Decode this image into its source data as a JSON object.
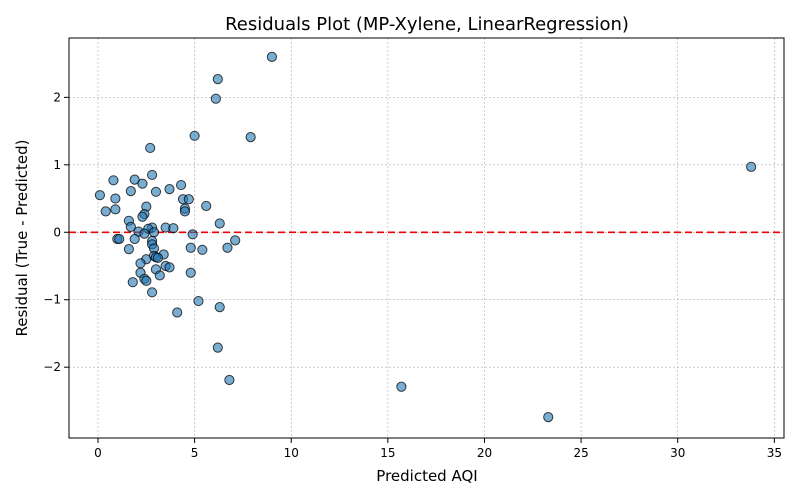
{
  "chart_data": {
    "type": "scatter",
    "title": "Residuals Plot (MP-Xylene, LinearRegression)",
    "xlabel": "Predicted AQI",
    "ylabel": "Residual (True - Predicted)",
    "xlim": [
      -1.5,
      35.5
    ],
    "ylim": [
      -3.05,
      2.88
    ],
    "xticks": [
      0,
      5,
      10,
      15,
      20,
      25,
      30,
      35
    ],
    "yticks": [
      -2,
      -1,
      0,
      1,
      2
    ],
    "x_tick_labels": [
      "0",
      "5",
      "10",
      "15",
      "20",
      "25",
      "30",
      "35"
    ],
    "y_tick_labels": [
      "−2",
      "−1",
      "0",
      "1",
      "2"
    ],
    "grid": true,
    "reference_line": {
      "y": 0,
      "color": "#ee0000",
      "style": "dashed"
    },
    "point_color": "#1f77b4",
    "points": [
      {
        "x": 9.0,
        "y": 2.6
      },
      {
        "x": 6.2,
        "y": 2.27
      },
      {
        "x": 6.1,
        "y": 1.98
      },
      {
        "x": 5.0,
        "y": 1.43
      },
      {
        "x": 7.9,
        "y": 1.41
      },
      {
        "x": 2.7,
        "y": 1.25
      },
      {
        "x": 33.8,
        "y": 0.97
      },
      {
        "x": 2.8,
        "y": 0.85
      },
      {
        "x": 0.8,
        "y": 0.77
      },
      {
        "x": 1.9,
        "y": 0.78
      },
      {
        "x": 2.3,
        "y": 0.72
      },
      {
        "x": 4.3,
        "y": 0.7
      },
      {
        "x": 3.7,
        "y": 0.64
      },
      {
        "x": 1.7,
        "y": 0.61
      },
      {
        "x": 3.0,
        "y": 0.6
      },
      {
        "x": 0.1,
        "y": 0.55
      },
      {
        "x": 0.9,
        "y": 0.5
      },
      {
        "x": 4.4,
        "y": 0.49
      },
      {
        "x": 4.7,
        "y": 0.49
      },
      {
        "x": 5.6,
        "y": 0.39
      },
      {
        "x": 2.5,
        "y": 0.38
      },
      {
        "x": 4.5,
        "y": 0.35
      },
      {
        "x": 4.5,
        "y": 0.31
      },
      {
        "x": 0.4,
        "y": 0.31
      },
      {
        "x": 0.9,
        "y": 0.34
      },
      {
        "x": 2.4,
        "y": 0.27
      },
      {
        "x": 2.3,
        "y": 0.23
      },
      {
        "x": 1.6,
        "y": 0.17
      },
      {
        "x": 6.3,
        "y": 0.13
      },
      {
        "x": 1.7,
        "y": 0.08
      },
      {
        "x": 2.8,
        "y": 0.07
      },
      {
        "x": 3.5,
        "y": 0.07
      },
      {
        "x": 3.9,
        "y": 0.06
      },
      {
        "x": 2.6,
        "y": 0.05
      },
      {
        "x": 2.1,
        "y": 0.01
      },
      {
        "x": 2.9,
        "y": 0.0
      },
      {
        "x": 2.4,
        "y": -0.02
      },
      {
        "x": 4.9,
        "y": -0.03
      },
      {
        "x": 1.0,
        "y": -0.1
      },
      {
        "x": 1.1,
        "y": -0.1
      },
      {
        "x": 1.9,
        "y": -0.1
      },
      {
        "x": 2.8,
        "y": -0.13
      },
      {
        "x": 7.1,
        "y": -0.12
      },
      {
        "x": 2.8,
        "y": -0.18
      },
      {
        "x": 4.8,
        "y": -0.23
      },
      {
        "x": 6.7,
        "y": -0.23
      },
      {
        "x": 1.6,
        "y": -0.25
      },
      {
        "x": 5.4,
        "y": -0.26
      },
      {
        "x": 2.9,
        "y": -0.24
      },
      {
        "x": 3.4,
        "y": -0.33
      },
      {
        "x": 2.9,
        "y": -0.35
      },
      {
        "x": 3.0,
        "y": -0.37
      },
      {
        "x": 3.1,
        "y": -0.38
      },
      {
        "x": 2.5,
        "y": -0.4
      },
      {
        "x": 2.2,
        "y": -0.46
      },
      {
        "x": 3.5,
        "y": -0.5
      },
      {
        "x": 3.7,
        "y": -0.52
      },
      {
        "x": 3.0,
        "y": -0.55
      },
      {
        "x": 2.2,
        "y": -0.6
      },
      {
        "x": 4.8,
        "y": -0.6
      },
      {
        "x": 3.2,
        "y": -0.64
      },
      {
        "x": 2.4,
        "y": -0.69
      },
      {
        "x": 2.5,
        "y": -0.72
      },
      {
        "x": 1.8,
        "y": -0.74
      },
      {
        "x": 2.8,
        "y": -0.89
      },
      {
        "x": 5.2,
        "y": -1.02
      },
      {
        "x": 6.3,
        "y": -1.11
      },
      {
        "x": 4.1,
        "y": -1.19
      },
      {
        "x": 6.2,
        "y": -1.71
      },
      {
        "x": 6.8,
        "y": -2.19
      },
      {
        "x": 15.7,
        "y": -2.29
      },
      {
        "x": 23.3,
        "y": -2.74
      }
    ]
  }
}
